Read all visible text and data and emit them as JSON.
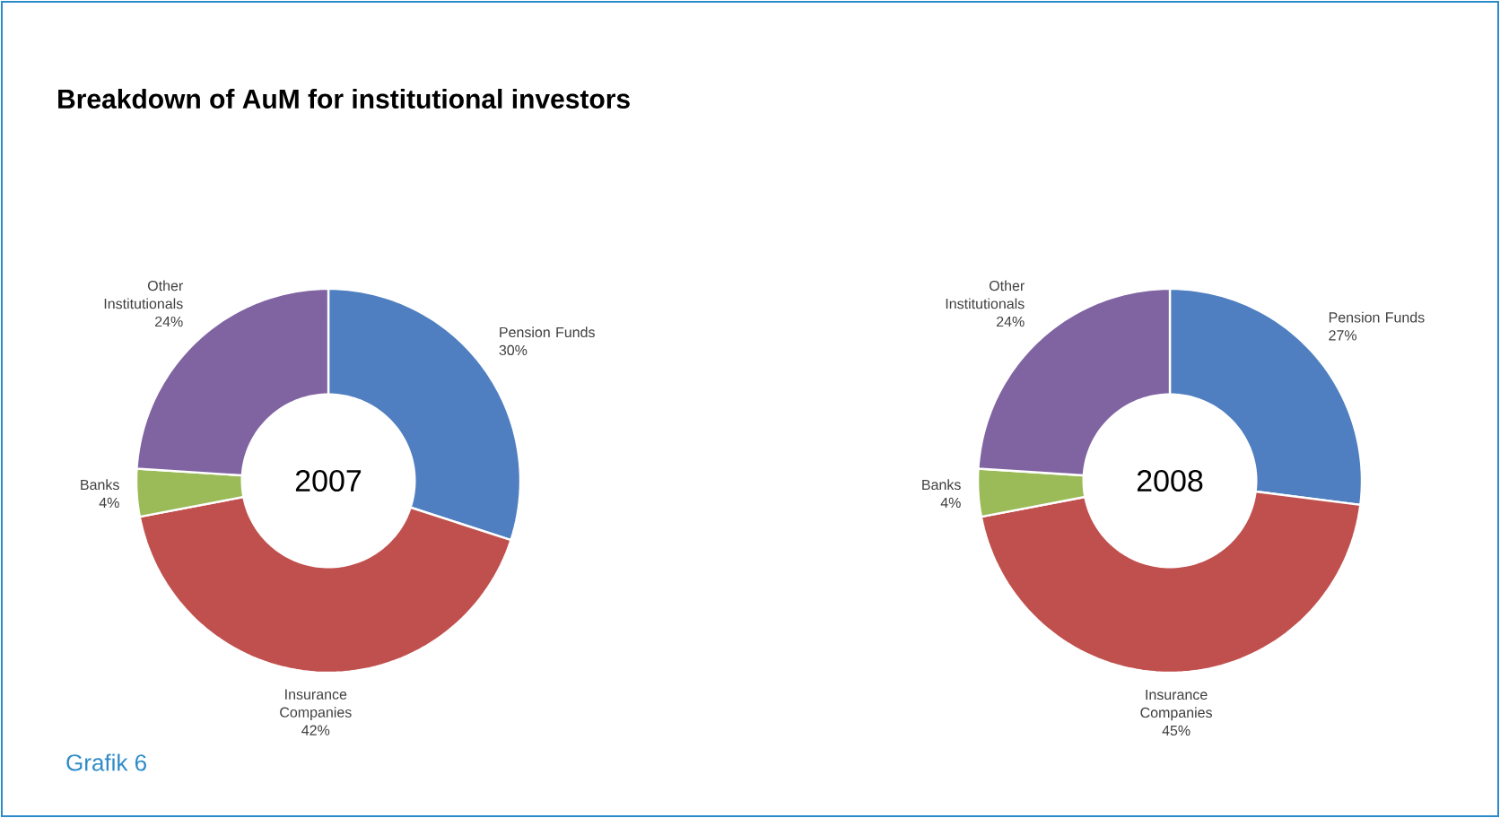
{
  "chart_data": [
    {
      "type": "donut",
      "title": "Breakdown of AuM for institutional investors",
      "subtitle": "2007",
      "annotations": [
        "Grafik 6"
      ],
      "categories": [
        "Pension Funds",
        "Insurance Companies",
        "Banks",
        "Other Institutionals"
      ],
      "values": [
        30,
        42,
        4,
        24
      ],
      "value_labels": [
        "30%",
        "42%",
        "4%",
        "24%"
      ],
      "colors": [
        "#4f7fc0",
        "#c0504d",
        "#9bbb59",
        "#8064a2"
      ]
    },
    {
      "type": "donut",
      "subtitle": "2008",
      "categories": [
        "Pension Funds",
        "Insurance Companies",
        "Banks",
        "Other Institutionals"
      ],
      "values": [
        27,
        45,
        4,
        24
      ],
      "value_labels": [
        "27%",
        "45%",
        "4%",
        "24%"
      ],
      "colors": [
        "#4f7fc0",
        "#c0504d",
        "#9bbb59",
        "#8064a2"
      ]
    }
  ]
}
